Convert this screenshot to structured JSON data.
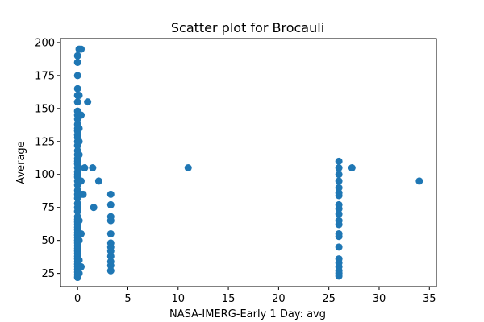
{
  "chart_data": {
    "type": "scatter",
    "title": "Scatter plot for Brocauli",
    "xlabel": "NASA-IMERG-Early 1 Day: avg",
    "ylabel": "Average",
    "xlim": [
      -1.7,
      35.7
    ],
    "ylim": [
      15,
      203
    ],
    "xticks": [
      0,
      5,
      10,
      15,
      20,
      25,
      30,
      35
    ],
    "yticks": [
      25,
      50,
      75,
      100,
      125,
      150,
      175,
      200
    ],
    "grid": false,
    "marker_color": "#1f77b4",
    "series": [
      {
        "points": [
          [
            0.0,
            22
          ],
          [
            0.0,
            24
          ],
          [
            0.0,
            26
          ],
          [
            0.0,
            28
          ],
          [
            0.0,
            30
          ],
          [
            0.0,
            32
          ],
          [
            0.0,
            34
          ],
          [
            0.0,
            36
          ],
          [
            0.0,
            38
          ],
          [
            0.0,
            40
          ],
          [
            0.0,
            42
          ],
          [
            0.0,
            44
          ],
          [
            0.0,
            46
          ],
          [
            0.0,
            48
          ],
          [
            0.0,
            50
          ],
          [
            0.0,
            52
          ],
          [
            0.0,
            54
          ],
          [
            0.0,
            56
          ],
          [
            0.0,
            58
          ],
          [
            0.0,
            60
          ],
          [
            0.0,
            62
          ],
          [
            0.0,
            64
          ],
          [
            0.0,
            66
          ],
          [
            0.0,
            68
          ],
          [
            0.0,
            72
          ],
          [
            0.0,
            75
          ],
          [
            0.0,
            78
          ],
          [
            0.0,
            82
          ],
          [
            0.0,
            85
          ],
          [
            0.0,
            88
          ],
          [
            0.0,
            92
          ],
          [
            0.0,
            95
          ],
          [
            0.0,
            98
          ],
          [
            0.0,
            100
          ],
          [
            0.0,
            102
          ],
          [
            0.0,
            105
          ],
          [
            0.0,
            108
          ],
          [
            0.0,
            110
          ],
          [
            0.0,
            112
          ],
          [
            0.0,
            115
          ],
          [
            0.0,
            118
          ],
          [
            0.0,
            122
          ],
          [
            0.0,
            125
          ],
          [
            0.0,
            128
          ],
          [
            0.0,
            130
          ],
          [
            0.0,
            133
          ],
          [
            0.0,
            135
          ],
          [
            0.0,
            138
          ],
          [
            0.0,
            142
          ],
          [
            0.0,
            145
          ],
          [
            0.0,
            148
          ],
          [
            0.0,
            155
          ],
          [
            0.0,
            160
          ],
          [
            0.0,
            165
          ],
          [
            0.0,
            175
          ],
          [
            0.0,
            185
          ],
          [
            0.0,
            190
          ],
          [
            0.15,
            25
          ],
          [
            0.15,
            35
          ],
          [
            0.15,
            50
          ],
          [
            0.15,
            65
          ],
          [
            0.15,
            85
          ],
          [
            0.15,
            105
          ],
          [
            0.15,
            115
          ],
          [
            0.15,
            125
          ],
          [
            0.15,
            135
          ],
          [
            0.15,
            145
          ],
          [
            0.15,
            160
          ],
          [
            0.15,
            195
          ],
          [
            0.35,
            30
          ],
          [
            0.35,
            55
          ],
          [
            0.35,
            85
          ],
          [
            0.35,
            95
          ],
          [
            0.35,
            145
          ],
          [
            0.35,
            195
          ],
          [
            0.55,
            85
          ],
          [
            0.7,
            105
          ],
          [
            1.0,
            155
          ],
          [
            1.5,
            105
          ],
          [
            1.6,
            75
          ],
          [
            2.1,
            95
          ],
          [
            3.3,
            27
          ],
          [
            3.3,
            31
          ],
          [
            3.3,
            34
          ],
          [
            3.3,
            38
          ],
          [
            3.3,
            42
          ],
          [
            3.3,
            45
          ],
          [
            3.3,
            48
          ],
          [
            3.3,
            55
          ],
          [
            3.3,
            65
          ],
          [
            3.3,
            68
          ],
          [
            3.3,
            77
          ],
          [
            3.3,
            85
          ],
          [
            11.0,
            105
          ],
          [
            26.0,
            23
          ],
          [
            26.0,
            25
          ],
          [
            26.0,
            27
          ],
          [
            26.0,
            30
          ],
          [
            26.0,
            33
          ],
          [
            26.0,
            36
          ],
          [
            26.0,
            45
          ],
          [
            26.0,
            53
          ],
          [
            26.0,
            55
          ],
          [
            26.0,
            62
          ],
          [
            26.0,
            65
          ],
          [
            26.0,
            70
          ],
          [
            26.0,
            74
          ],
          [
            26.0,
            77
          ],
          [
            26.0,
            84
          ],
          [
            26.0,
            86
          ],
          [
            26.0,
            90
          ],
          [
            26.0,
            95
          ],
          [
            26.0,
            100
          ],
          [
            26.0,
            105
          ],
          [
            26.0,
            110
          ],
          [
            27.3,
            105
          ],
          [
            34.0,
            95
          ]
        ]
      }
    ]
  }
}
